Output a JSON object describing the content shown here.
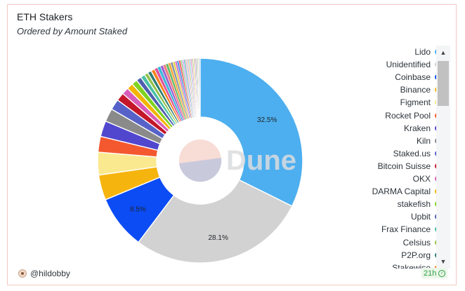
{
  "title": "ETH Stakers",
  "subtitle": "Ordered by Amount Staked",
  "watermark": "Dune",
  "author": "@hildobby",
  "refresh": "21h",
  "icons": {
    "avatar": "avatar-icon",
    "refresh": "check-circle-icon",
    "scroll_up": "caret-up-icon",
    "scroll_down": "caret-down-icon"
  },
  "legend_visible": [
    {
      "name": "Lido",
      "color": "#4dafef"
    },
    {
      "name": "Unidentified",
      "color": "#d2d2d2"
    },
    {
      "name": "Coinbase",
      "color": "#0b4cf5"
    },
    {
      "name": "Binance",
      "color": "#f6b40e"
    },
    {
      "name": "Figment",
      "color": "#fbe98f"
    },
    {
      "name": "Rocket Pool",
      "color": "#f4582f"
    },
    {
      "name": "Kraken",
      "color": "#5147cf"
    },
    {
      "name": "Kiln",
      "color": "#8a8a8a"
    },
    {
      "name": "Staked.us",
      "color": "#5662c8"
    },
    {
      "name": "Bitcoin Suisse",
      "color": "#c4162a"
    },
    {
      "name": "OKX",
      "color": "#d85db8"
    },
    {
      "name": "DARMA Capital",
      "color": "#f2b500"
    },
    {
      "name": "stakefish",
      "color": "#7ed321"
    },
    {
      "name": "Upbit",
      "color": "#4f5fb0"
    },
    {
      "name": "Frax Finance",
      "color": "#4ac1a6"
    },
    {
      "name": "Celsius",
      "color": "#93c24a"
    },
    {
      "name": "P2P.org",
      "color": "#2e7d73"
    },
    {
      "name": "Stakewise",
      "color": "#f5841f"
    }
  ],
  "chart_data": {
    "type": "pie",
    "title": "ETH Stakers",
    "subtitle": "Ordered by Amount Staked",
    "legend_placement": "right",
    "series": [
      {
        "name": "Lido",
        "value": 32.5,
        "color": "#4dafef",
        "label": "32.5%"
      },
      {
        "name": "Unidentified",
        "value": 28.1,
        "color": "#d2d2d2",
        "label": "28.1%"
      },
      {
        "name": "Coinbase",
        "value": 8.5,
        "color": "#0b4cf5",
        "label": "8.5%"
      },
      {
        "name": "Binance",
        "value": 4.0,
        "color": "#f6b40e"
      },
      {
        "name": "Figment",
        "value": 3.6,
        "color": "#fbe98f"
      },
      {
        "name": "Rocket Pool",
        "value": 2.5,
        "color": "#f4582f"
      },
      {
        "name": "Kraken",
        "value": 2.5,
        "color": "#5147cf"
      },
      {
        "name": "Kiln",
        "value": 2.1,
        "color": "#8a8a8a"
      },
      {
        "name": "Staked.us",
        "value": 1.7,
        "color": "#5662c8"
      },
      {
        "name": "Bitcoin Suisse",
        "value": 1.3,
        "color": "#c4162a"
      },
      {
        "name": "OKX",
        "value": 1.1,
        "color": "#d85db8"
      },
      {
        "name": "DARMA Capital",
        "value": 1.0,
        "color": "#f2b500"
      },
      {
        "name": "stakefish",
        "value": 0.9,
        "color": "#7ed321"
      },
      {
        "name": "Upbit",
        "value": 0.8,
        "color": "#4f5fb0"
      },
      {
        "name": "Frax Finance",
        "value": 0.7,
        "color": "#4ac1a6"
      },
      {
        "name": "Celsius",
        "value": 0.6,
        "color": "#93c24a"
      },
      {
        "name": "P2P.org",
        "value": 0.6,
        "color": "#2e7d73"
      },
      {
        "name": "Stakewise",
        "value": 0.6,
        "color": "#f5841f"
      }
    ],
    "others": [
      {
        "value": 0.5,
        "color": "#e0529c"
      },
      {
        "value": 0.5,
        "color": "#3fb8d8"
      },
      {
        "value": 0.45,
        "color": "#9c5fd0"
      },
      {
        "value": 0.45,
        "color": "#f07f7f"
      },
      {
        "value": 0.4,
        "color": "#5dbb63"
      },
      {
        "value": 0.4,
        "color": "#f4a742"
      },
      {
        "value": 0.35,
        "color": "#7f8fa6"
      },
      {
        "value": 0.35,
        "color": "#e8d44d"
      },
      {
        "value": 0.3,
        "color": "#c96bd0"
      },
      {
        "value": 0.3,
        "color": "#4a90e2"
      },
      {
        "value": 0.3,
        "color": "#f06262"
      },
      {
        "value": 0.25,
        "color": "#9ad18b"
      },
      {
        "value": 0.25,
        "color": "#d4a5f5"
      },
      {
        "value": 0.25,
        "color": "#6cc4c4"
      },
      {
        "value": 0.2,
        "color": "#f7b2b2"
      },
      {
        "value": 0.2,
        "color": "#b8b8e8"
      },
      {
        "value": 0.2,
        "color": "#e6c77a"
      },
      {
        "value": 0.2,
        "color": "#8fd3f0"
      },
      {
        "value": 0.2,
        "color": "#f0a0d0"
      },
      {
        "value": 0.15,
        "color": "#a0a0a0"
      },
      {
        "value": 0.15,
        "color": "#c2e080"
      },
      {
        "value": 0.15,
        "color": "#ffb870"
      },
      {
        "value": 0.15,
        "color": "#98a8ff"
      },
      {
        "value": 0.15,
        "color": "#e09090"
      },
      {
        "value": 0.15,
        "color": "#70d0a0"
      },
      {
        "value": 0.15,
        "color": "#ffd0e0"
      },
      {
        "value": 0.15,
        "color": "#d0d0a0"
      },
      {
        "value": 0.15,
        "color": "#b0d0ff"
      }
    ]
  }
}
